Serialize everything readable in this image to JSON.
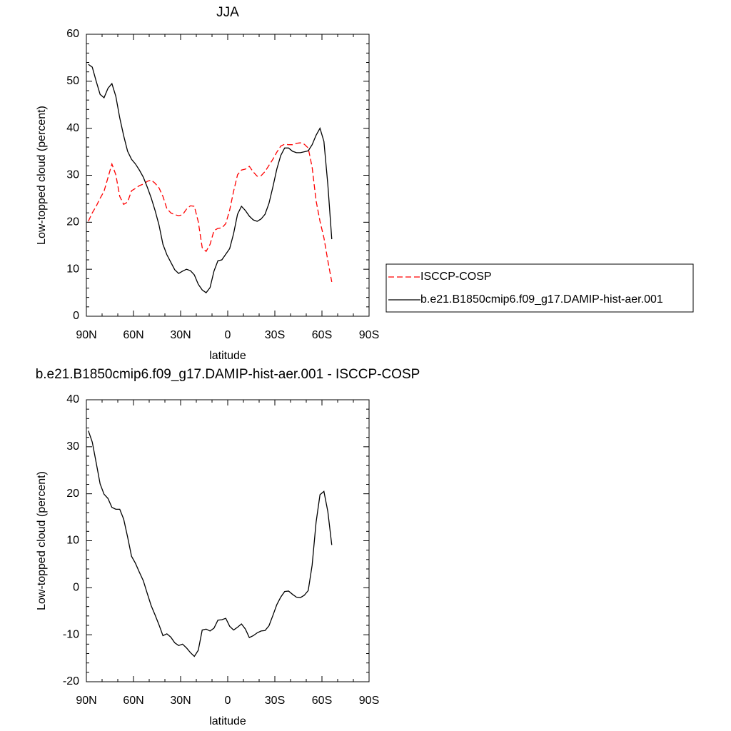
{
  "chart_data": [
    {
      "type": "line",
      "title": "JJA",
      "xlabel": "latitude",
      "ylabel": "Low-topped cloud (percent)",
      "x": [
        88.75,
        86.25,
        83.75,
        81.25,
        78.75,
        76.25,
        73.75,
        71.25,
        68.75,
        66.25,
        63.75,
        61.25,
        58.75,
        56.25,
        53.75,
        51.25,
        48.75,
        46.25,
        43.75,
        41.25,
        38.75,
        36.25,
        33.75,
        31.25,
        28.75,
        26.25,
        23.75,
        21.25,
        18.75,
        16.25,
        13.75,
        11.25,
        8.75,
        6.25,
        3.75,
        1.25,
        -1.25,
        -3.75,
        -6.25,
        -8.75,
        -11.25,
        -13.75,
        -16.25,
        -18.75,
        -21.25,
        -23.75,
        -26.25,
        -28.75,
        -31.25,
        -33.75,
        -36.25,
        -38.75,
        -41.25,
        -43.75,
        -46.25,
        -48.75,
        -51.25,
        -53.75,
        -56.25,
        -58.75,
        -61.25,
        -63.75,
        -66.25
      ],
      "xlim": [
        90,
        -90
      ],
      "xticks": [
        {
          "value": 90,
          "label": "90N"
        },
        {
          "value": 60,
          "label": "60N"
        },
        {
          "value": 30,
          "label": "30N"
        },
        0,
        {
          "value": -30,
          "label": "30S"
        },
        {
          "value": -60,
          "label": "60S"
        },
        {
          "value": -90,
          "label": "90S"
        }
      ],
      "ylim": [
        0,
        60
      ],
      "yticks": [
        0,
        10,
        20,
        30,
        40,
        50,
        60
      ],
      "legend": "right",
      "series": [
        {
          "name": "ISCCP-COSP",
          "color": "#ff0000",
          "dashed": true,
          "values": [
            20.2,
            22.0,
            23.4,
            25.1,
            26.6,
            29.5,
            32.4,
            30.1,
            25.5,
            23.8,
            24.3,
            26.7,
            27.2,
            27.8,
            28.1,
            28.7,
            29.0,
            28.3,
            27.3,
            25.5,
            22.9,
            22.0,
            21.6,
            21.4,
            21.6,
            22.8,
            23.5,
            23.4,
            20.1,
            14.6,
            13.8,
            15.3,
            18.2,
            18.7,
            18.8,
            19.7,
            22.6,
            26.6,
            30.1,
            31.1,
            31.3,
            31.9,
            30.7,
            29.8,
            29.9,
            30.8,
            32.1,
            33.4,
            34.9,
            36.2,
            36.6,
            36.5,
            36.5,
            36.8,
            36.9,
            36.6,
            35.8,
            31.7,
            24.6,
            20.2,
            16.7,
            11.8,
            7.3
          ]
        },
        {
          "name": "b.e21.B1850cmip6.f09_g17.DAMIP-hist-aer.001",
          "color": "#000000",
          "dashed": false,
          "values": [
            53.6,
            53.0,
            50.0,
            47.2,
            46.5,
            48.5,
            49.5,
            46.8,
            42.2,
            38.4,
            35.1,
            33.4,
            32.4,
            31.1,
            29.6,
            27.5,
            25.2,
            22.5,
            19.4,
            15.3,
            13.1,
            11.5,
            9.9,
            9.1,
            9.6,
            10.0,
            9.7,
            8.8,
            6.8,
            5.6,
            5.0,
            6.1,
            9.6,
            11.8,
            12.0,
            13.2,
            14.4,
            17.6,
            21.7,
            23.4,
            22.5,
            21.3,
            20.5,
            20.2,
            20.7,
            21.7,
            24.0,
            27.5,
            31.3,
            34.2,
            35.8,
            35.8,
            35.1,
            34.8,
            34.8,
            35.0,
            35.2,
            36.5,
            38.5,
            40.0,
            37.2,
            28.0,
            16.4
          ]
        }
      ]
    },
    {
      "type": "line",
      "title": "b.e21.B1850cmip6.f09_g17.DAMIP-hist-aer.001 - ISCCP-COSP",
      "xlabel": "latitude",
      "ylabel": "Low-topped cloud (percent)",
      "x": [
        88.75,
        86.25,
        83.75,
        81.25,
        78.75,
        76.25,
        73.75,
        71.25,
        68.75,
        66.25,
        63.75,
        61.25,
        58.75,
        56.25,
        53.75,
        51.25,
        48.75,
        46.25,
        43.75,
        41.25,
        38.75,
        36.25,
        33.75,
        31.25,
        28.75,
        26.25,
        23.75,
        21.25,
        18.75,
        16.25,
        13.75,
        11.25,
        8.75,
        6.25,
        3.75,
        1.25,
        -1.25,
        -3.75,
        -6.25,
        -8.75,
        -11.25,
        -13.75,
        -16.25,
        -18.75,
        -21.25,
        -23.75,
        -26.25,
        -28.75,
        -31.25,
        -33.75,
        -36.25,
        -38.75,
        -41.25,
        -43.75,
        -46.25,
        -48.75,
        -51.25,
        -53.75,
        -56.25,
        -58.75,
        -61.25,
        -63.75,
        -66.25
      ],
      "xlim": [
        90,
        -90
      ],
      "xticks": [
        {
          "value": 90,
          "label": "90N"
        },
        {
          "value": 60,
          "label": "60N"
        },
        {
          "value": 30,
          "label": "30N"
        },
        0,
        {
          "value": -30,
          "label": "30S"
        },
        {
          "value": -60,
          "label": "60S"
        },
        {
          "value": -90,
          "label": "90S"
        }
      ],
      "ylim": [
        -20,
        40
      ],
      "yticks": [
        -20,
        -10,
        0,
        10,
        20,
        30,
        40
      ],
      "series": [
        {
          "color": "#000000",
          "dashed": false,
          "values": [
            33.4,
            31.0,
            26.6,
            22.1,
            19.9,
            19.0,
            17.1,
            16.7,
            16.7,
            14.6,
            10.8,
            6.7,
            5.2,
            3.3,
            1.5,
            -1.2,
            -3.8,
            -5.8,
            -7.9,
            -10.2,
            -9.8,
            -10.5,
            -11.7,
            -12.3,
            -12.0,
            -12.8,
            -13.8,
            -14.6,
            -13.3,
            -9.0,
            -8.8,
            -9.2,
            -8.6,
            -6.9,
            -6.8,
            -6.5,
            -8.2,
            -9.0,
            -8.4,
            -7.7,
            -8.8,
            -10.6,
            -10.2,
            -9.6,
            -9.2,
            -9.1,
            -8.1,
            -5.9,
            -3.6,
            -2.0,
            -0.8,
            -0.7,
            -1.4,
            -2.0,
            -2.1,
            -1.6,
            -0.6,
            4.8,
            13.9,
            19.8,
            20.5,
            16.2,
            9.1
          ]
        }
      ]
    }
  ]
}
